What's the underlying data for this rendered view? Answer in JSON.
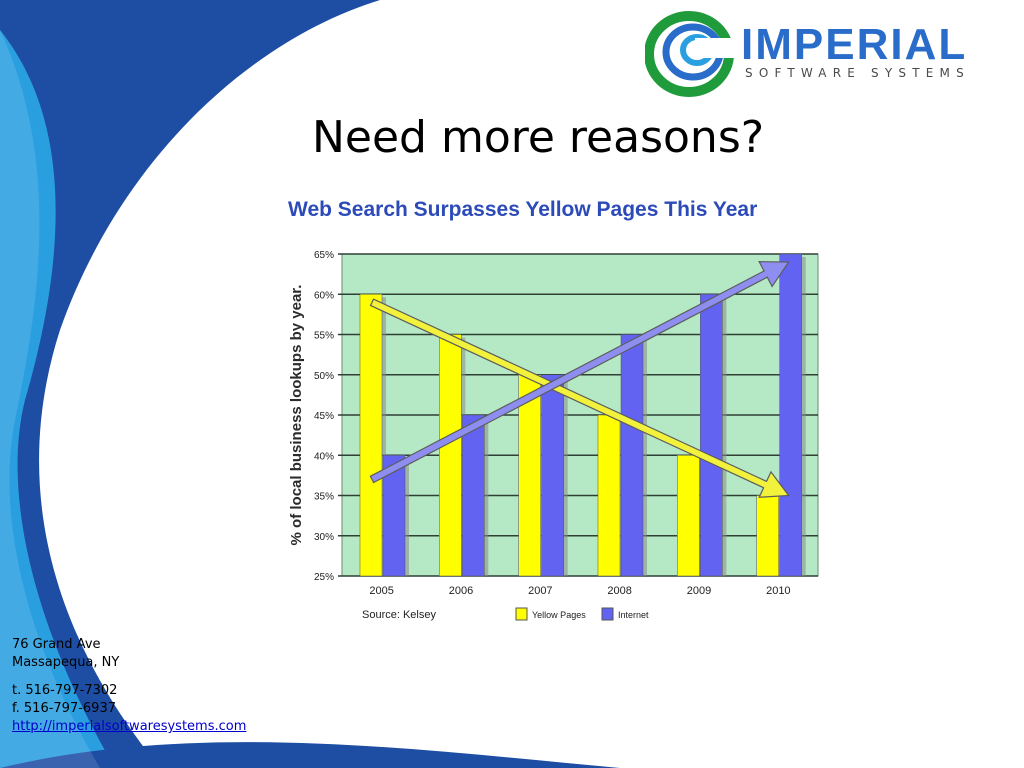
{
  "slide": {
    "title": "Need more reasons?"
  },
  "logo": {
    "name": "IMPERIAL",
    "tagline": "SOFTWARE SYSTEMS"
  },
  "contact": {
    "address_line1": "76 Grand Ave",
    "address_line2": "Massapequa, NY",
    "phone": "t. 516-797-7302",
    "fax": "f. 516-797-6937",
    "website": "http://imperialsoftwaresystems.com"
  },
  "chart_data": {
    "type": "bar",
    "title": "Web Search Surpasses Yellow Pages This Year",
    "ylabel": "% of local business lookups by year.",
    "xlabel": "",
    "source": "Source: Kelsey",
    "categories": [
      "2005",
      "2006",
      "2007",
      "2008",
      "2009",
      "2010"
    ],
    "ylim": [
      25,
      65
    ],
    "yticks": [
      "25%",
      "30%",
      "35%",
      "40%",
      "45%",
      "50%",
      "55%",
      "60%",
      "65%"
    ],
    "grid": true,
    "legend_position": "bottom",
    "series": [
      {
        "name": "Yellow Pages",
        "values": [
          60,
          55,
          50,
          45,
          40,
          35
        ],
        "color": "#ffff00"
      },
      {
        "name": "Internet",
        "values": [
          40,
          45,
          50,
          55,
          60,
          65
        ],
        "color": "#6363f2"
      }
    ],
    "trend_arrows": [
      {
        "series": "Yellow Pages",
        "from": [
          2005,
          59
        ],
        "to": [
          2010,
          35
        ],
        "color": "#f2f23c"
      },
      {
        "series": "Internet",
        "from": [
          2005,
          37
        ],
        "to": [
          2010,
          64
        ],
        "color": "#8e8ef0"
      }
    ],
    "plot_bg": "#b5e8c4",
    "title_color": "#2c4bb8"
  }
}
